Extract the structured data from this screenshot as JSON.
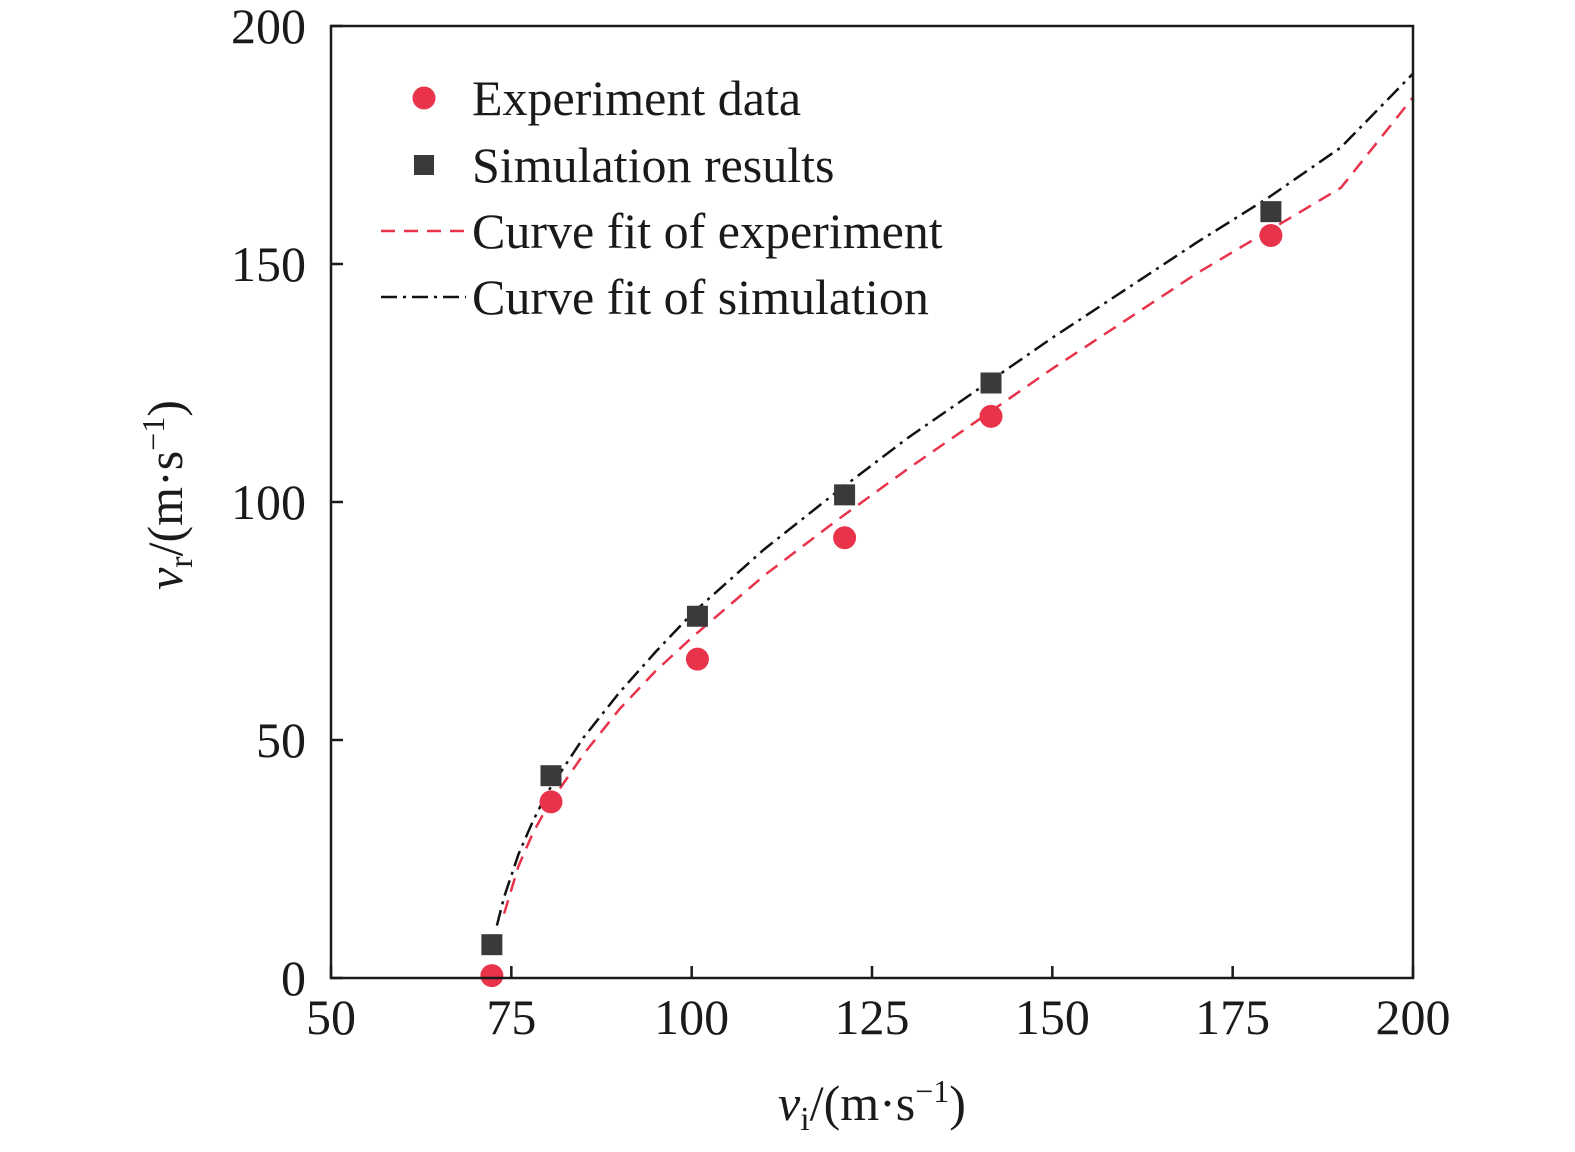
{
  "chart_data": {
    "type": "scatter",
    "title": "",
    "xlabel": {
      "var": "v",
      "sub": "i",
      "unit_open": "/(m·s",
      "unit_exp": "−1",
      "unit_close": ")"
    },
    "ylabel": {
      "var": "v",
      "sub": "r",
      "unit_open": "/(m·s",
      "unit_exp": "−1",
      "unit_close": ")"
    },
    "xlim": [
      50,
      200
    ],
    "ylim": [
      0,
      200
    ],
    "xticks": [
      50,
      75,
      100,
      125,
      150,
      175,
      200
    ],
    "yticks": [
      0,
      50,
      100,
      150,
      200
    ],
    "grid": false,
    "legend_position": "top-left",
    "series": [
      {
        "name": "Experiment data",
        "marker": "circle",
        "color": "#e8334a",
        "x": [
          72.3,
          80.5,
          100.8,
          121.2,
          141.5,
          180.3
        ],
        "y": [
          0.5,
          37,
          67,
          92.5,
          118,
          156
        ]
      },
      {
        "name": "Simulation results",
        "marker": "square",
        "color": "#3a3a3a",
        "x": [
          72.3,
          80.5,
          100.8,
          121.2,
          141.5,
          180.3
        ],
        "y": [
          7,
          42.5,
          76,
          101.5,
          125,
          161
        ]
      },
      {
        "name": "Curve fit of experiment",
        "line": "dashed",
        "color": "#e8334a",
        "x": [
          74,
          76,
          78,
          80,
          85,
          90,
          95,
          100,
          110,
          120,
          130,
          140,
          150,
          160,
          170,
          180,
          190,
          200
        ],
        "y": [
          13.5,
          23.5,
          30.5,
          36,
          47,
          56.5,
          64.5,
          71.5,
          84.5,
          96,
          107,
          117.5,
          128,
          138,
          148,
          157,
          166,
          185
        ]
      },
      {
        "name": "Curve fit of simulation",
        "line": "dash-dot",
        "color": "#111111",
        "x": [
          73,
          74,
          76,
          78,
          80,
          85,
          90,
          95,
          100,
          110,
          120,
          130,
          140,
          150,
          160,
          170,
          180,
          190,
          200
        ],
        "y": [
          11,
          17,
          26,
          33,
          39,
          50.5,
          60,
          68.5,
          76.5,
          90,
          102,
          113.5,
          124,
          134.5,
          144.5,
          154.5,
          164,
          174.5,
          190
        ]
      }
    ]
  }
}
